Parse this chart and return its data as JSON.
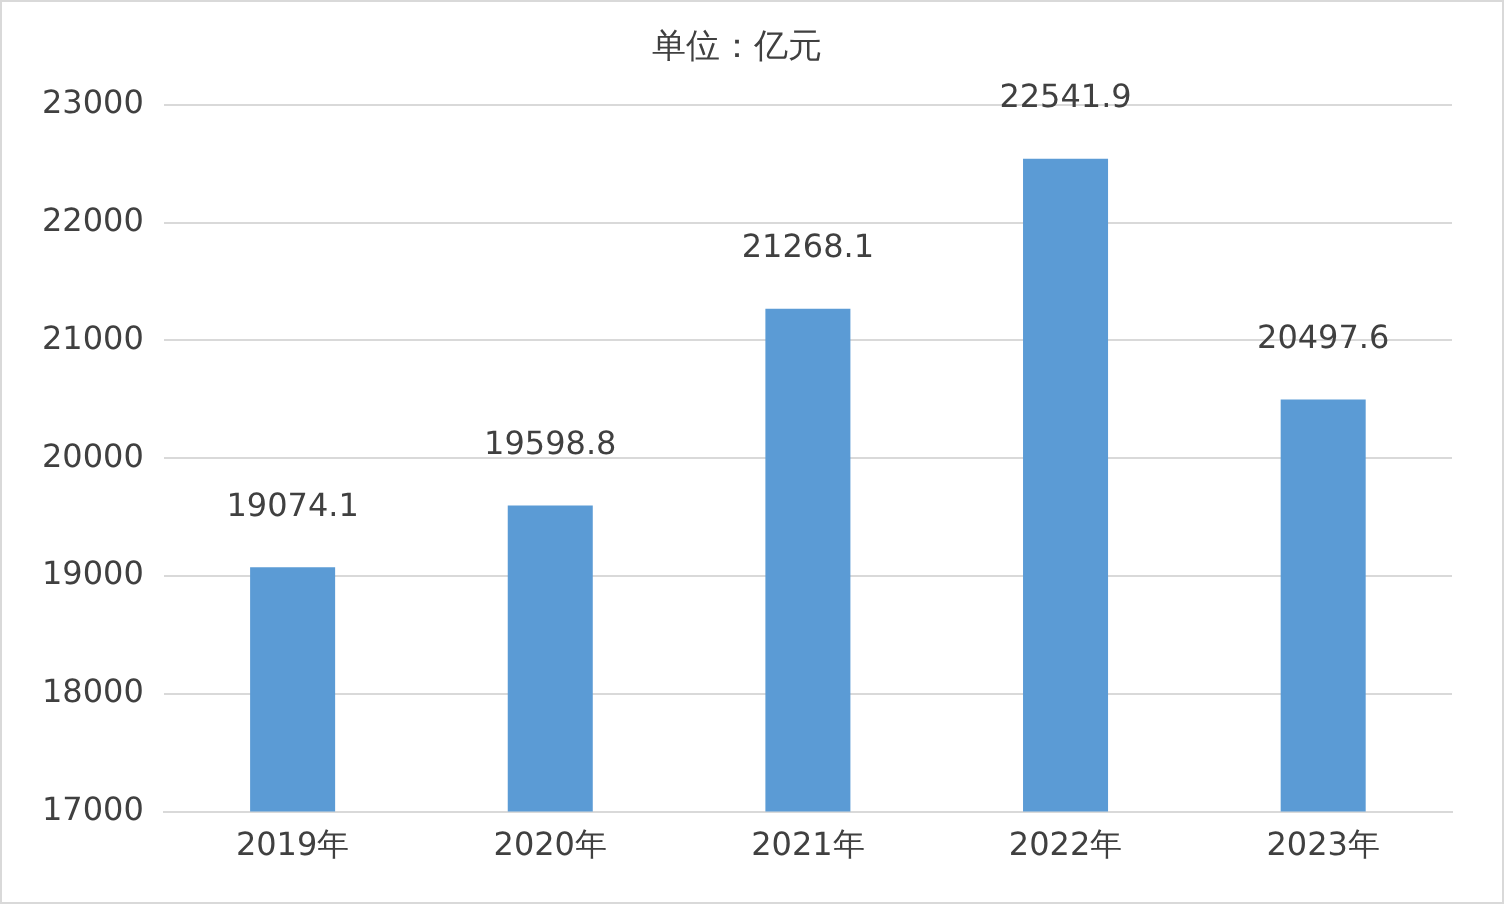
{
  "chart_data": {
    "type": "bar",
    "title": "单位：亿元",
    "categories": [
      "2019年",
      "2020年",
      "2021年",
      "2022年",
      "2023年"
    ],
    "values": [
      19074.1,
      19598.8,
      21268.1,
      22541.9,
      20497.6
    ],
    "color": "#5b9bd5",
    "ylim": [
      17000,
      23000
    ],
    "yticks": [
      17000,
      18000,
      19000,
      20000,
      21000,
      22000,
      23000
    ],
    "grid": "y",
    "data_labels": true,
    "legend": false
  }
}
